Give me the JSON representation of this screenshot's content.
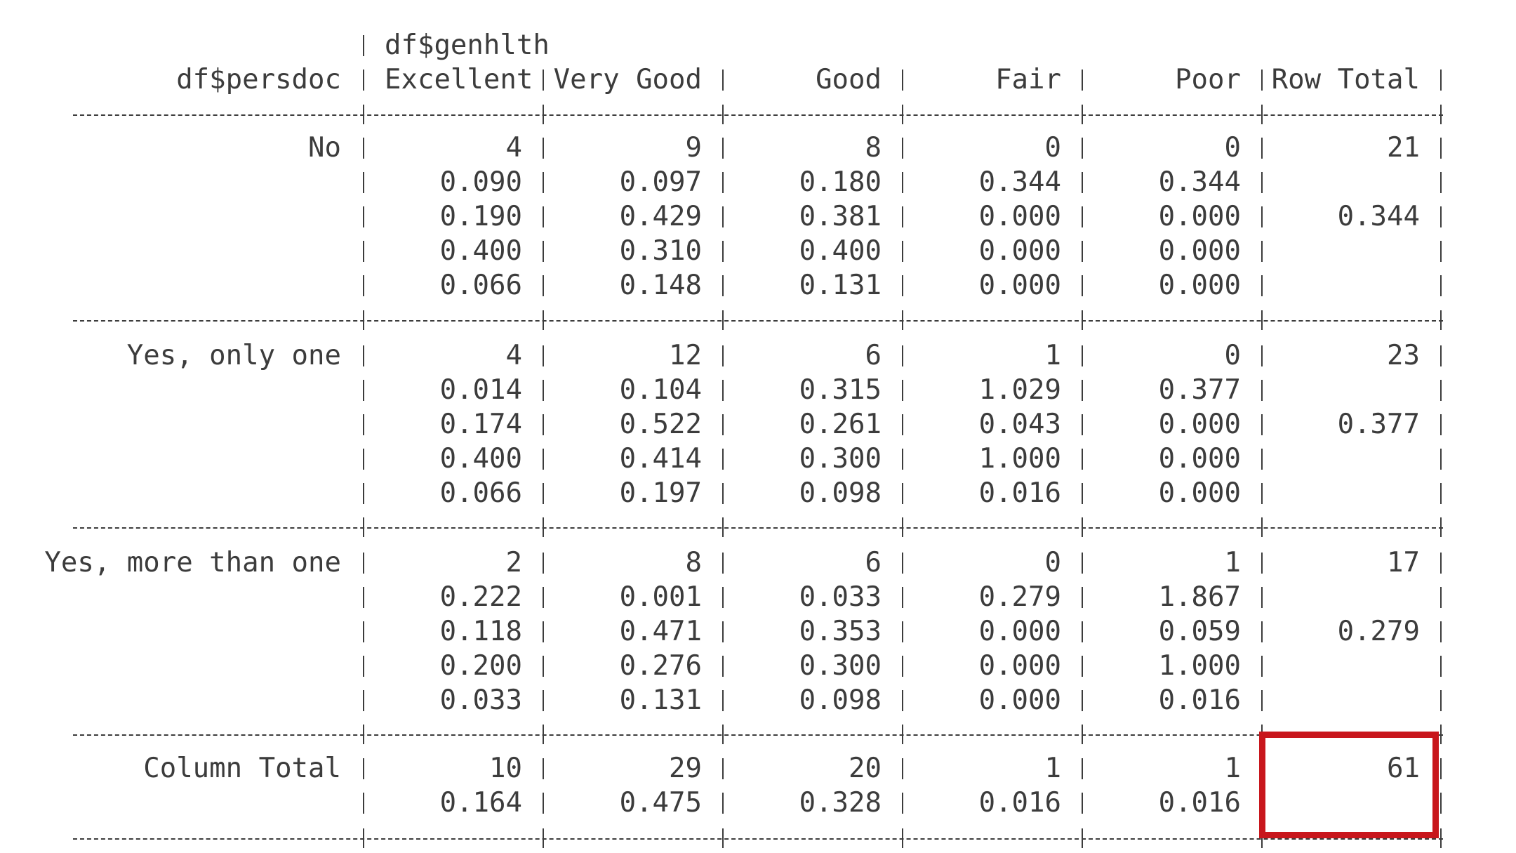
{
  "header": {
    "col_var": "df$genhlth",
    "row_var": "df$persdoc",
    "columns": [
      "Excellent",
      "Very Good",
      "Good",
      "Fair",
      "Poor",
      "Row Total"
    ]
  },
  "rows": [
    {
      "label": "No",
      "lines": [
        [
          "4",
          "9",
          "8",
          "0",
          "0",
          "21"
        ],
        [
          "0.090",
          "0.097",
          "0.180",
          "0.344",
          "0.344",
          ""
        ],
        [
          "0.190",
          "0.429",
          "0.381",
          "0.000",
          "0.000",
          "0.344"
        ],
        [
          "0.400",
          "0.310",
          "0.400",
          "0.000",
          "0.000",
          ""
        ],
        [
          "0.066",
          "0.148",
          "0.131",
          "0.000",
          "0.000",
          ""
        ]
      ]
    },
    {
      "label": "Yes, only one",
      "lines": [
        [
          "4",
          "12",
          "6",
          "1",
          "0",
          "23"
        ],
        [
          "0.014",
          "0.104",
          "0.315",
          "1.029",
          "0.377",
          ""
        ],
        [
          "0.174",
          "0.522",
          "0.261",
          "0.043",
          "0.000",
          "0.377"
        ],
        [
          "0.400",
          "0.414",
          "0.300",
          "1.000",
          "0.000",
          ""
        ],
        [
          "0.066",
          "0.197",
          "0.098",
          "0.016",
          "0.000",
          ""
        ]
      ]
    },
    {
      "label": "Yes, more than one",
      "lines": [
        [
          "2",
          "8",
          "6",
          "0",
          "1",
          "17"
        ],
        [
          "0.222",
          "0.001",
          "0.033",
          "0.279",
          "1.867",
          ""
        ],
        [
          "0.118",
          "0.471",
          "0.353",
          "0.000",
          "0.059",
          "0.279"
        ],
        [
          "0.200",
          "0.276",
          "0.300",
          "0.000",
          "1.000",
          ""
        ],
        [
          "0.033",
          "0.131",
          "0.098",
          "0.000",
          "0.016",
          ""
        ]
      ]
    }
  ],
  "totals": {
    "label": "Column Total",
    "lines": [
      [
        "10",
        "29",
        "20",
        "1",
        "1",
        "61"
      ],
      [
        "0.164",
        "0.475",
        "0.328",
        "0.016",
        "0.016",
        ""
      ]
    ]
  },
  "highlight": {
    "color": "#c8161c",
    "target": "grand-total"
  }
}
